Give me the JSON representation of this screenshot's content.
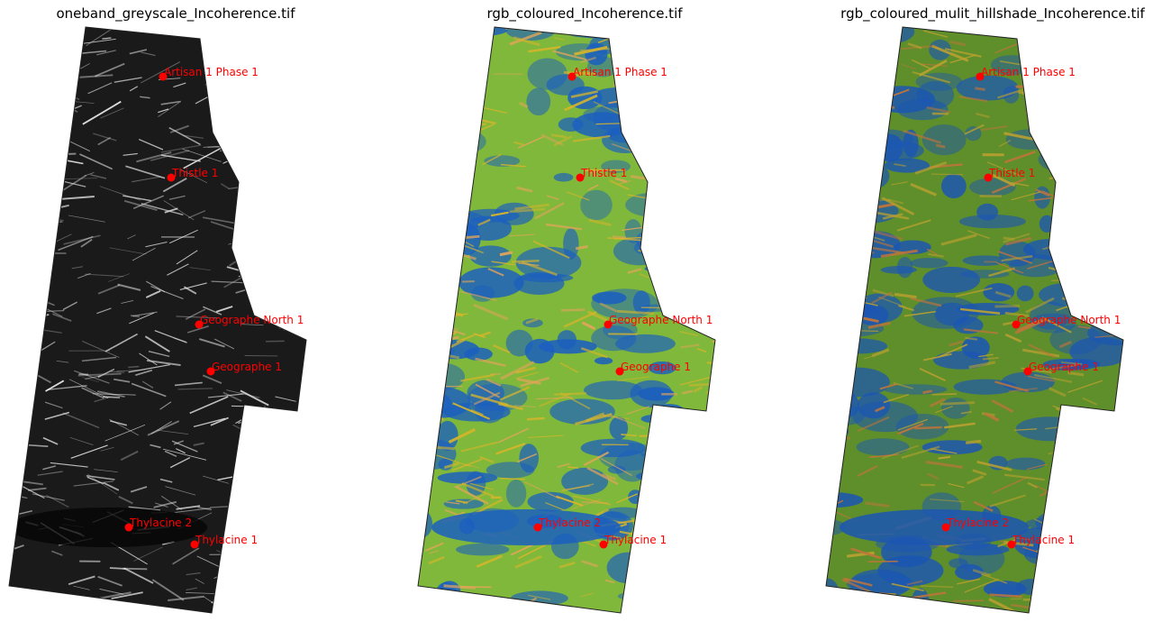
{
  "panels": [
    {
      "title": "oneband_greyscale_Incoherence.tif",
      "style": "greyscale",
      "colors": {
        "base": "#1a1a1a",
        "stroke": "#dddddd",
        "hi": "#ffffff"
      }
    },
    {
      "title": "rgb_coloured_Incoherence.tif",
      "style": "coloured",
      "colors": {
        "base": "#7fb83a",
        "blue": "#1b5fbf",
        "yellow": "#d9b52a",
        "orange": "#e2a55a"
      }
    },
    {
      "title": "rgb_coloured_mulit_hillshade_Incoherence.tif",
      "style": "hillshade",
      "colors": {
        "base": "#5f8f2a",
        "blue": "#1b56b3",
        "yellow": "#b9a030",
        "orange": "#c0743a"
      }
    }
  ],
  "wells": [
    {
      "name": "Artisan 1 Phase 1"
    },
    {
      "name": "Thistle 1"
    },
    {
      "name": "Geographe North 1"
    },
    {
      "name": "Geographe 1"
    },
    {
      "name": "Thylacine 2"
    },
    {
      "name": "Thylacine 1"
    }
  ],
  "well_color": "#ff0000"
}
